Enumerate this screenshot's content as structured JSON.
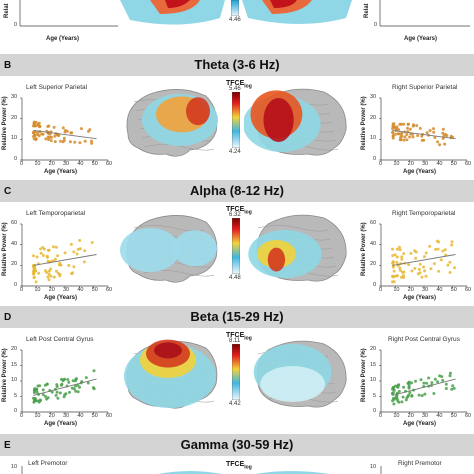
{
  "axes_common": {
    "xlabel": "Age (Years)",
    "ylabel": "Relative Power (%)",
    "ylabel_short": "Relat",
    "xticks": [
      "0",
      "10",
      "20",
      "30",
      "40",
      "50",
      "60"
    ]
  },
  "top": {
    "colorbar_min": "4.46",
    "left_yticks": [
      "0"
    ],
    "right_yticks": [
      "0"
    ]
  },
  "panels": [
    {
      "letter": "B",
      "title": "Theta (3-6 Hz)",
      "left_region": "Left Superior Parietal",
      "right_region": "Right Superior Parietal",
      "tfce_max": "5.46",
      "tfce_min": "4.24",
      "yticks": [
        "0",
        "10",
        "20",
        "30"
      ],
      "color": "#d4892a"
    },
    {
      "letter": "C",
      "title": "Alpha (8-12 Hz)",
      "left_region": "Left Temporoparietal",
      "right_region": "Right Temporoparietal",
      "tfce_max": "6.32",
      "tfce_min": "4.48",
      "yticks": [
        "0",
        "20",
        "40",
        "60"
      ],
      "color": "#e6b832"
    },
    {
      "letter": "D",
      "title": "Beta (15-29 Hz)",
      "left_region": "Left Post Central Gyrus",
      "right_region": "Right Post Central Gyrus",
      "tfce_max": "8.11",
      "tfce_min": "4.42",
      "yticks": [
        "0",
        "5",
        "10",
        "15",
        "20"
      ],
      "color": "#4aa04a"
    }
  ],
  "bottom": {
    "letter": "E",
    "title": "Gamma (30-59 Hz)",
    "left_region": "Left Premotor",
    "right_region": "Right Premotor",
    "ytick_top": "10"
  },
  "tfce_label": "TFCE",
  "tfce_sub": "log"
}
